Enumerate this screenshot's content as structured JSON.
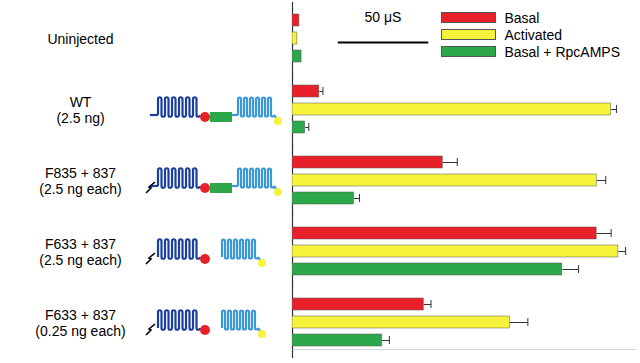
{
  "chart_data": {
    "type": "bar",
    "orientation": "horizontal",
    "categories": [
      "Uninjected",
      "WT\n(2.5 ng)",
      "F835 + 837\n(2.5 ng each)",
      "F633 + 837\n(2.5 ng each)",
      "F633 + 837\n(0.25 ng each)"
    ],
    "series": [
      {
        "name": "Basal",
        "color": "#e8202a",
        "values": [
          3.8,
          14.8,
          83,
          168,
          72.5
        ],
        "errors": [
          null,
          2,
          8,
          8,
          4
        ]
      },
      {
        "name": "Activated",
        "color": "#f7f23c",
        "values": [
          2.7,
          176,
          168,
          180,
          120
        ],
        "errors": [
          null,
          3,
          5,
          4,
          10
        ]
      },
      {
        "name": "Basal + RpcAMPS",
        "color": "#2ca84a",
        "values": [
          5,
          7,
          34,
          149,
          49.5
        ],
        "errors": [
          null,
          2,
          3,
          9,
          4
        ]
      }
    ],
    "xlim": [
      0,
      190
    ],
    "xticks": [],
    "tick_labels": false,
    "legend": "top-right",
    "scale_bar": {
      "value": 50,
      "label": "50 μS"
    }
  }
}
